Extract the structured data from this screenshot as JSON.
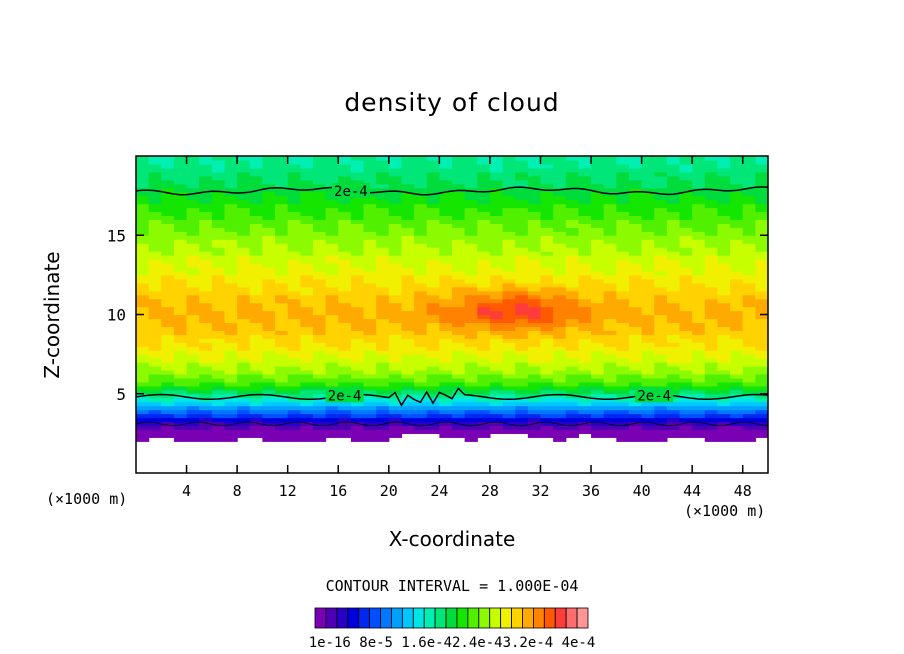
{
  "chart_data": {
    "type": "heatmap",
    "title": "density of cloud",
    "xlabel": "X-coordinate",
    "ylabel": "Z-coordinate",
    "x_unit": "(×1000 m)",
    "xlim": [
      0,
      50
    ],
    "ylim": [
      0,
      20
    ],
    "x_ticks": [
      4,
      8,
      12,
      16,
      20,
      24,
      28,
      32,
      36,
      40,
      44,
      48
    ],
    "y_ticks": [
      5,
      10,
      15
    ],
    "contour_interval_text": "CONTOUR INTERVAL = 1.000E-04",
    "contour_labels": [
      {
        "text": "2e-4",
        "x": 17,
        "z": 17.8
      },
      {
        "text": "2e-4",
        "x": 16.5,
        "z": 4.9
      },
      {
        "text": "2e-4",
        "x": 41,
        "z": 4.9
      }
    ],
    "colorbar": {
      "tick_labels": [
        "1e-16",
        "8e-5",
        "1.6e-4",
        "2.4e-4",
        "3.2e-4",
        "4e-4"
      ],
      "label_text": "1e-16 8e-5 1.6e-42.4e-43.2e-4 4e-4",
      "colors": [
        "#7a00b4",
        "#5000b4",
        "#2800c8",
        "#0000dc",
        "#0028f0",
        "#0050ff",
        "#0078ff",
        "#00a0ff",
        "#00c8ff",
        "#00e6e6",
        "#00f0b4",
        "#00e678",
        "#00dc3c",
        "#14e600",
        "#50f000",
        "#8cfa00",
        "#c8ff00",
        "#f0f000",
        "#ffd200",
        "#ffaa00",
        "#ff8200",
        "#ff5a00",
        "#ff3c3c",
        "#ff6e6e",
        "#ff9696"
      ]
    },
    "z_profile": [
      {
        "z": 2.0,
        "value": 0.0
      },
      {
        "z": 2.6,
        "value": 4e-06
      },
      {
        "z": 3.2,
        "value": 4e-05
      },
      {
        "z": 4.0,
        "value": 0.00011
      },
      {
        "z": 4.8,
        "value": 0.00017
      },
      {
        "z": 5.5,
        "value": 0.00022
      },
      {
        "z": 6.5,
        "value": 0.000255
      },
      {
        "z": 8.0,
        "value": 0.000285
      },
      {
        "z": 9.0,
        "value": 0.0003
      },
      {
        "z": 10.0,
        "value": 0.00031
      },
      {
        "z": 11.0,
        "value": 0.0003
      },
      {
        "z": 12.5,
        "value": 0.00028
      },
      {
        "z": 14.0,
        "value": 0.00026
      },
      {
        "z": 15.5,
        "value": 0.00024
      },
      {
        "z": 17.0,
        "value": 0.000215
      },
      {
        "z": 18.5,
        "value": 0.00019
      },
      {
        "z": 20.0,
        "value": 0.000175
      }
    ],
    "cloud_base_z": 2.0
  }
}
